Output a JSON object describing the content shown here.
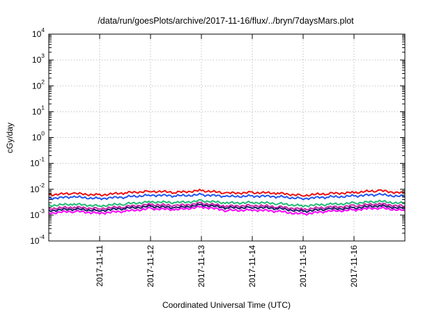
{
  "chart_data": {
    "type": "line",
    "title": "/data/run/goesPlots/archive/2017-11-16/flux/../bryn/7daysMars.plot",
    "xlabel": "Coordinated Universal Time (UTC)",
    "ylabel": "cGy/day",
    "y_scale": "log",
    "ylim": [
      0.0001,
      10000
    ],
    "y_ticks": [
      {
        "base": "10",
        "exp": "-4"
      },
      {
        "base": "10",
        "exp": "-3"
      },
      {
        "base": "10",
        "exp": "-2"
      },
      {
        "base": "10",
        "exp": "-1"
      },
      {
        "base": "10",
        "exp": "0"
      },
      {
        "base": "10",
        "exp": "1"
      },
      {
        "base": "10",
        "exp": "2"
      },
      {
        "base": "10",
        "exp": "3"
      },
      {
        "base": "10",
        "exp": "4"
      }
    ],
    "xlim": [
      "2017-11-10T00:00",
      "2017-11-17T00:00"
    ],
    "x_ticks": [
      "2017-11-11",
      "2017-11-12",
      "2017-11-13",
      "2017-11-14",
      "2017-11-15",
      "2017-11-16"
    ],
    "grid": true,
    "legend": "none",
    "x": [
      "2017-11-10T00:00",
      "2017-11-10T12:00",
      "2017-11-11T00:00",
      "2017-11-11T12:00",
      "2017-11-12T00:00",
      "2017-11-12T12:00",
      "2017-11-13T00:00",
      "2017-11-13T12:00",
      "2017-11-14T00:00",
      "2017-11-14T12:00",
      "2017-11-15T00:00",
      "2017-11-15T12:00",
      "2017-11-16T00:00",
      "2017-11-16T12:00",
      "2017-11-17T00:00"
    ],
    "series": [
      {
        "color": "#ee1111",
        "values": [
          0.0062,
          0.0068,
          0.006,
          0.0072,
          0.0085,
          0.0075,
          0.009,
          0.007,
          0.0075,
          0.007,
          0.0058,
          0.0068,
          0.0075,
          0.0088,
          0.007
        ]
      },
      {
        "color": "#2255ee",
        "values": [
          0.0045,
          0.005,
          0.0044,
          0.005,
          0.006,
          0.0055,
          0.0062,
          0.0052,
          0.0055,
          0.0052,
          0.0044,
          0.005,
          0.0055,
          0.0062,
          0.0052
        ]
      },
      {
        "color": "#22bb77",
        "values": [
          0.0024,
          0.0026,
          0.0023,
          0.0027,
          0.0033,
          0.003,
          0.0036,
          0.0029,
          0.0031,
          0.0028,
          0.0023,
          0.0026,
          0.0029,
          0.0034,
          0.0028
        ]
      },
      {
        "color": "#cc22aa",
        "values": [
          0.0018,
          0.002,
          0.0018,
          0.0021,
          0.0026,
          0.0023,
          0.0029,
          0.0022,
          0.0024,
          0.0021,
          0.0017,
          0.002,
          0.0023,
          0.0027,
          0.0022
        ]
      },
      {
        "color": "#1a1a66",
        "values": [
          0.0015,
          0.0017,
          0.0015,
          0.0018,
          0.0022,
          0.0019,
          0.0025,
          0.0019,
          0.002,
          0.0018,
          0.0014,
          0.0017,
          0.0019,
          0.0023,
          0.0018
        ]
      },
      {
        "color": "#ff00ff",
        "values": [
          0.0012,
          0.0014,
          0.0012,
          0.0014,
          0.0018,
          0.0016,
          0.0021,
          0.0015,
          0.0016,
          0.0014,
          0.0011,
          0.0014,
          0.0016,
          0.0019,
          0.0015
        ]
      }
    ]
  }
}
